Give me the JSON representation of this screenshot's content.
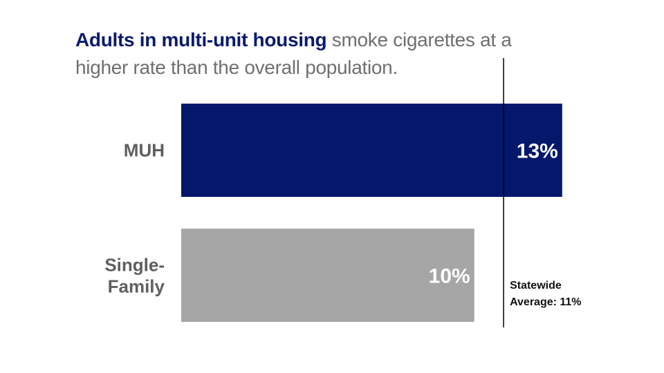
{
  "title": {
    "highlight": "Adults in multi-unit housing",
    "rest": " smoke cigarettes at a higher rate than the overall population."
  },
  "chart_data": {
    "type": "bar",
    "orientation": "horizontal",
    "categories": [
      "MUH",
      "Single-Family"
    ],
    "values": [
      13,
      10
    ],
    "value_labels": [
      "13%",
      "10%"
    ],
    "bar_colors": [
      "#04176b",
      "#a6a6a6"
    ],
    "xlim": [
      0,
      13.5
    ],
    "grid": false,
    "reference_line": {
      "value": 11,
      "label_lines": [
        "Statewide",
        "Average: 11%"
      ]
    }
  }
}
